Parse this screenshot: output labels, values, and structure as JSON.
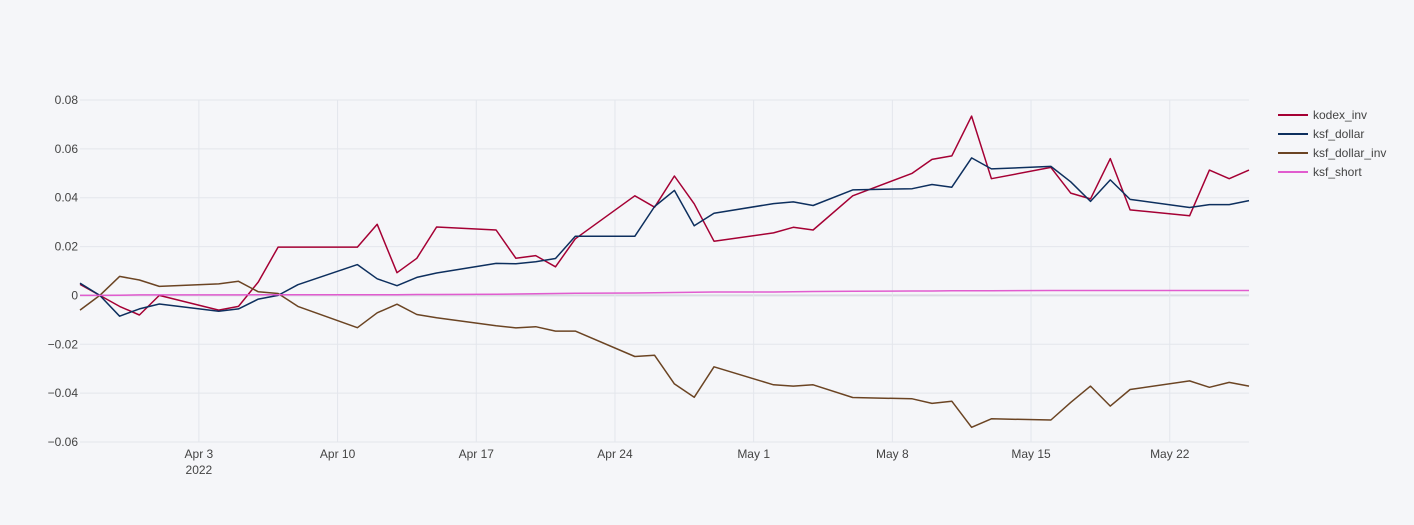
{
  "chart_data": {
    "type": "line",
    "title": "",
    "xlabel": "",
    "ylabel": "",
    "x_range": [
      "2022-03-28",
      "2022-05-26"
    ],
    "ylim": [
      -0.06,
      0.08
    ],
    "y_ticks": [
      {
        "value": 0.08,
        "label": "0.08"
      },
      {
        "value": 0.06,
        "label": "0.06"
      },
      {
        "value": 0.04,
        "label": "0.04"
      },
      {
        "value": 0.02,
        "label": "0.02"
      },
      {
        "value": 0,
        "label": "0"
      },
      {
        "value": -0.02,
        "label": "−0.02"
      },
      {
        "value": -0.04,
        "label": "−0.04"
      },
      {
        "value": -0.06,
        "label": "−0.06"
      }
    ],
    "x_ticks": [
      {
        "date": "2022-04-03",
        "label": "Apr 3",
        "sublabel": "2022"
      },
      {
        "date": "2022-04-10",
        "label": "Apr 10"
      },
      {
        "date": "2022-04-17",
        "label": "Apr 17"
      },
      {
        "date": "2022-04-24",
        "label": "Apr 24"
      },
      {
        "date": "2022-05-01",
        "label": "May 1"
      },
      {
        "date": "2022-05-08",
        "label": "May 8"
      },
      {
        "date": "2022-05-15",
        "label": "May 15"
      },
      {
        "date": "2022-05-22",
        "label": "May 22"
      }
    ],
    "grid": true,
    "legend_position": "top-right",
    "x": [
      "2022-03-28",
      "2022-03-29",
      "2022-03-30",
      "2022-03-31",
      "2022-04-01",
      "2022-04-04",
      "2022-04-05",
      "2022-04-06",
      "2022-04-07",
      "2022-04-08",
      "2022-04-11",
      "2022-04-12",
      "2022-04-13",
      "2022-04-14",
      "2022-04-15",
      "2022-04-18",
      "2022-04-19",
      "2022-04-20",
      "2022-04-21",
      "2022-04-22",
      "2022-04-25",
      "2022-04-26",
      "2022-04-27",
      "2022-04-28",
      "2022-04-29",
      "2022-05-02",
      "2022-05-03",
      "2022-05-04",
      "2022-05-06",
      "2022-05-09",
      "2022-05-10",
      "2022-05-11",
      "2022-05-12",
      "2022-05-13",
      "2022-05-16",
      "2022-05-17",
      "2022-05-18",
      "2022-05-19",
      "2022-05-20",
      "2022-05-23",
      "2022-05-24",
      "2022-05-25",
      "2022-05-26"
    ],
    "series": [
      {
        "name": "kodex_inv",
        "color": "#a50034",
        "values": [
          0.0045,
          0,
          -0.0045,
          -0.008,
          0,
          -0.006,
          -0.0045,
          0.0055,
          0.0198,
          0.0198,
          0.0198,
          0.0291,
          0.0093,
          0.0152,
          0.028,
          0.0268,
          0.0152,
          0.0163,
          0.0117,
          0.0232,
          0.0408,
          0.0361,
          0.0489,
          0.0375,
          0.0222,
          0.0256,
          0.0279,
          0.0268,
          0.0408,
          0.05,
          0.0557,
          0.0571,
          0.0734,
          0.0478,
          0.0524,
          0.0419,
          0.0395,
          0.056,
          0.035,
          0.0326,
          0.0513,
          0.0478,
          0.0513
        ]
      },
      {
        "name": "ksf_dollar",
        "color": "#0d2f5e",
        "values": [
          0.005,
          0,
          -0.0085,
          -0.0055,
          -0.0035,
          -0.0065,
          -0.0055,
          -0.0015,
          0,
          0.0044,
          0.0126,
          0.0068,
          0.004,
          0.0074,
          0.0092,
          0.0131,
          0.013,
          0.0138,
          0.0151,
          0.0242,
          0.0242,
          0.0364,
          0.043,
          0.0285,
          0.0336,
          0.0376,
          0.0383,
          0.0368,
          0.0432,
          0.0437,
          0.0454,
          0.0443,
          0.0563,
          0.0518,
          0.0528,
          0.0465,
          0.0385,
          0.0473,
          0.0393,
          0.036,
          0.0372,
          0.0372,
          0.0388
        ]
      },
      {
        "name": "ksf_dollar_inv",
        "color": "#6b4423",
        "values": [
          -0.006,
          0,
          0.0078,
          0.0063,
          0.0037,
          0.0047,
          0.0058,
          0.0015,
          0.0008,
          -0.0045,
          -0.0132,
          -0.0071,
          -0.0036,
          -0.0078,
          -0.0091,
          -0.0124,
          -0.0133,
          -0.0128,
          -0.0146,
          -0.0146,
          -0.025,
          -0.0245,
          -0.0362,
          -0.0417,
          -0.0292,
          -0.0366,
          -0.0371,
          -0.0366,
          -0.0418,
          -0.0423,
          -0.0442,
          -0.0433,
          -0.054,
          -0.0505,
          -0.051,
          -0.0438,
          -0.0371,
          -0.0453,
          -0.0385,
          -0.035,
          -0.0376,
          -0.0356,
          -0.0371
        ]
      },
      {
        "name": "ksf_short",
        "color": "#e15ccf",
        "values": [
          0,
          0,
          0.0001,
          0.0002,
          0.0002,
          0.0002,
          0.0002,
          0.0003,
          0.0003,
          0.0003,
          0.0003,
          0.0003,
          0.0003,
          0.0004,
          0.0004,
          0.0005,
          0.0006,
          0.0007,
          0.0008,
          0.0009,
          0.001,
          0.0011,
          0.0012,
          0.0013,
          0.0014,
          0.0014,
          0.0015,
          0.0016,
          0.0017,
          0.0018,
          0.0018,
          0.0019,
          0.0019,
          0.0019,
          0.002,
          0.002,
          0.002,
          0.002,
          0.002,
          0.002,
          0.002,
          0.002,
          0.002
        ]
      }
    ]
  }
}
